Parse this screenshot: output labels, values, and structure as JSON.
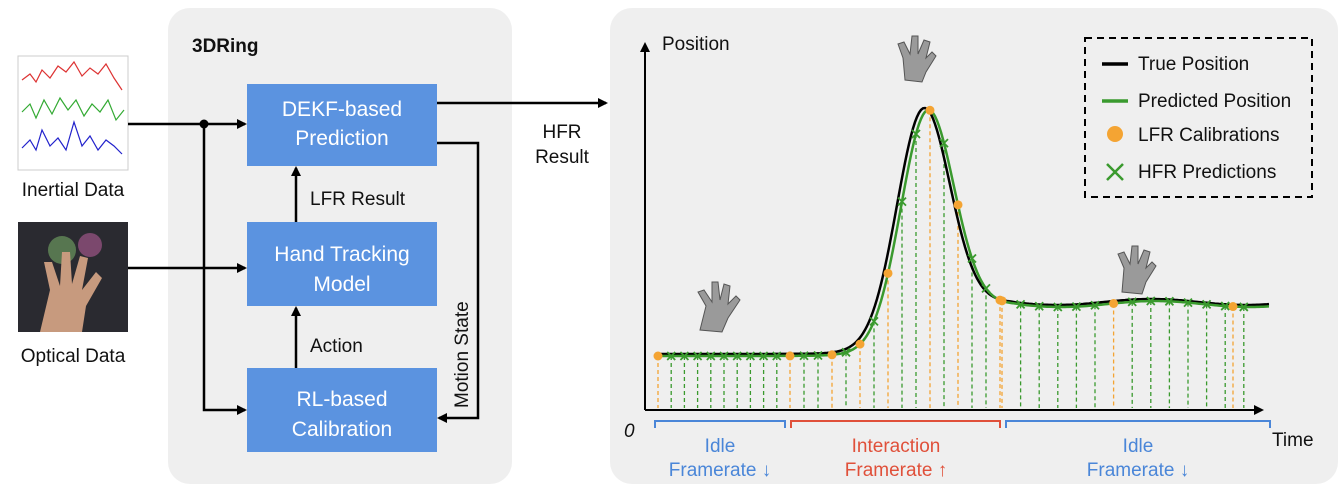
{
  "inputs": [
    {
      "label": "Inertial Data"
    },
    {
      "label": "Optical Data"
    }
  ],
  "system": {
    "title": "3DRing",
    "blocks": [
      {
        "lines": [
          "DEKF-based",
          "Prediction"
        ]
      },
      {
        "lines": [
          "Hand Tracking",
          "Model"
        ]
      },
      {
        "lines": [
          "RL-based",
          "Calibration"
        ]
      }
    ],
    "edges": [
      "LFR Result",
      "Action",
      "Motion State"
    ]
  },
  "output": {
    "lines": [
      "HFR",
      "Result"
    ]
  },
  "plot": {
    "y_label": "Position",
    "x_label": "Time",
    "origin": "0",
    "legend": [
      "True Position",
      "Predicted Position",
      "LFR Calibrations",
      "HFR Predictions"
    ],
    "phases": [
      {
        "lines": [
          "Idle",
          "Framerate ↓"
        ]
      },
      {
        "lines": [
          "Interaction",
          "Framerate ↑"
        ]
      },
      {
        "lines": [
          "Idle",
          "Framerate ↓"
        ]
      }
    ]
  }
}
